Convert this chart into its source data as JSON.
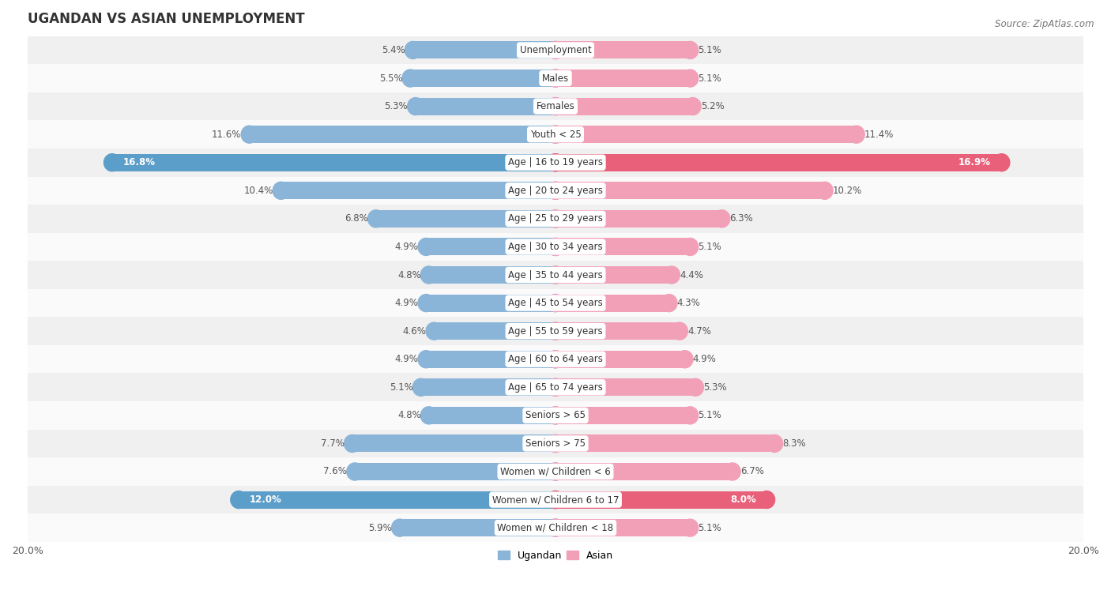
{
  "title": "UGANDAN VS ASIAN UNEMPLOYMENT",
  "source": "Source: ZipAtlas.com",
  "categories": [
    "Unemployment",
    "Males",
    "Females",
    "Youth < 25",
    "Age | 16 to 19 years",
    "Age | 20 to 24 years",
    "Age | 25 to 29 years",
    "Age | 30 to 34 years",
    "Age | 35 to 44 years",
    "Age | 45 to 54 years",
    "Age | 55 to 59 years",
    "Age | 60 to 64 years",
    "Age | 65 to 74 years",
    "Seniors > 65",
    "Seniors > 75",
    "Women w/ Children < 6",
    "Women w/ Children 6 to 17",
    "Women w/ Children < 18"
  ],
  "ugandan": [
    5.4,
    5.5,
    5.3,
    11.6,
    16.8,
    10.4,
    6.8,
    4.9,
    4.8,
    4.9,
    4.6,
    4.9,
    5.1,
    4.8,
    7.7,
    7.6,
    12.0,
    5.9
  ],
  "asian": [
    5.1,
    5.1,
    5.2,
    11.4,
    16.9,
    10.2,
    6.3,
    5.1,
    4.4,
    4.3,
    4.7,
    4.9,
    5.3,
    5.1,
    8.3,
    6.7,
    8.0,
    5.1
  ],
  "ugandan_color": "#8ab4d8",
  "asian_color": "#f2a0b8",
  "ugandan_highlight_color": "#5b9ec9",
  "asian_highlight_color": "#e8607a",
  "highlight_rows": [
    4,
    16
  ],
  "bar_height": 0.62,
  "max_val": 20.0,
  "bg_color_odd": "#f0f0f0",
  "bg_color_even": "#fafafa",
  "label_fontsize": 8.5,
  "category_fontsize": 8.5,
  "title_fontsize": 12,
  "source_fontsize": 8.5,
  "axis_label_fontsize": 9,
  "legend_fontsize": 9
}
